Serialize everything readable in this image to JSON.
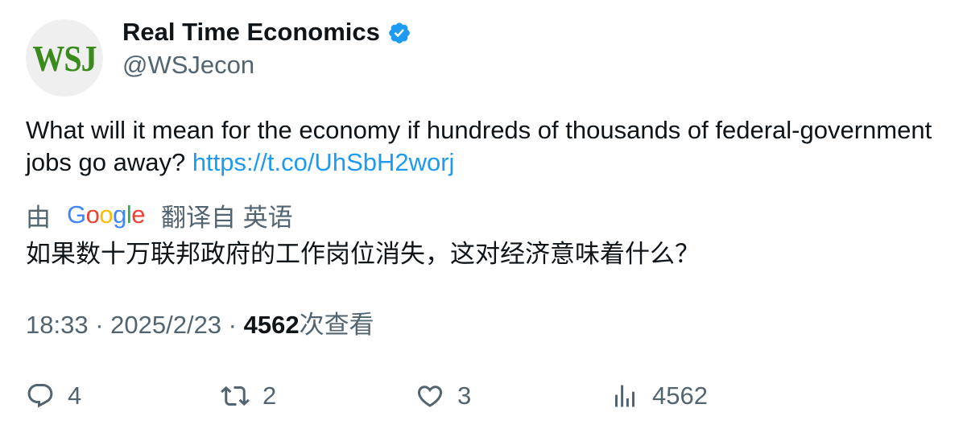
{
  "author": {
    "avatar_text": "WSJ",
    "display_name": "Real Time Economics",
    "handle": "@WSJecon"
  },
  "tweet": {
    "text": "What will it mean for the economy if hundreds of thousands of federal-government jobs go away? ",
    "link": "https://t.co/UhSbH2worj"
  },
  "translation": {
    "prefix": "由",
    "provider_letters": [
      "G",
      "o",
      "o",
      "g",
      "l",
      "e"
    ],
    "suffix": "翻译自 英语",
    "text": "如果数十万联邦政府的工作岗位消失，这对经济意味着什么？"
  },
  "meta": {
    "time": "18:33",
    "separator": " · ",
    "date": "2025/2/23",
    "views_count": "4562",
    "views_label": "次查看"
  },
  "actions": {
    "replies": "4",
    "retweets": "2",
    "likes": "3",
    "views": "4562"
  },
  "colors": {
    "link": "#1d9bf0",
    "secondary_text": "#536471",
    "primary_text": "#0f1419",
    "verified": "#1d9bf0",
    "avatar_logo": "#3a8a1e"
  },
  "icons": {
    "verified": "verified-badge-icon",
    "reply": "reply-icon",
    "retweet": "retweet-icon",
    "like": "heart-icon",
    "views": "views-bar-chart-icon"
  }
}
